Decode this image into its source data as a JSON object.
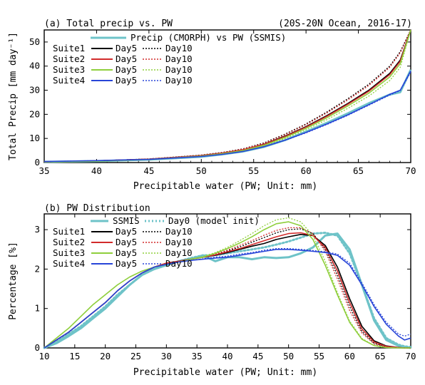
{
  "chart_data": [
    {
      "type": "line",
      "panel_label": "(a) Total precip vs. PW",
      "region_label": "(20S-20N Ocean, 2016-17)",
      "xlabel": "Precipitable water (PW; Unit: mm)",
      "ylabel": "Total Precip [mm day⁻¹]",
      "xlim": [
        35,
        70
      ],
      "ylim": [
        0,
        55
      ],
      "xticks": [
        35,
        40,
        45,
        50,
        55,
        60,
        65,
        70
      ],
      "yticks": [
        0,
        10,
        20,
        30,
        40,
        50
      ],
      "grid": false,
      "legend_position": "top-left",
      "reference": {
        "label": "Precip (CMORPH) vs PW (SSMIS)",
        "color": "#6ec3c8"
      },
      "suites": [
        {
          "name": "Suite1",
          "color": "#000000"
        },
        {
          "name": "Suite2",
          "color": "#d22b2b"
        },
        {
          "name": "Suite3",
          "color": "#8fcf3c"
        },
        {
          "name": "Suite4",
          "color": "#2845d8"
        }
      ],
      "day_labels": [
        "Day5",
        "Day10"
      ],
      "x": [
        35,
        40,
        45,
        50,
        52,
        54,
        56,
        58,
        60,
        62,
        64,
        66,
        68,
        69,
        70
      ],
      "observed": [
        0.3,
        0.6,
        1.2,
        2.4,
        3.4,
        4.6,
        6.5,
        9.3,
        12.8,
        16.5,
        20.4,
        24.6,
        28.2,
        29.2,
        38.5
      ],
      "series": [
        {
          "suite": "Suite1",
          "day": "Day5",
          "values": [
            0.3,
            0.7,
            1.4,
            2.9,
            3.9,
            5.3,
            7.6,
            11.0,
            14.9,
            19.5,
            24.5,
            30.0,
            37.0,
            42.5,
            55.0
          ]
        },
        {
          "suite": "Suite1",
          "day": "Day10",
          "values": [
            0.3,
            0.7,
            1.5,
            3.1,
            4.2,
            5.7,
            8.2,
            11.8,
            16.0,
            21.0,
            26.5,
            32.5,
            40.0,
            46.0,
            55.0
          ]
        },
        {
          "suite": "Suite2",
          "day": "Day5",
          "values": [
            0.3,
            0.7,
            1.4,
            2.9,
            3.9,
            5.3,
            7.5,
            10.8,
            14.7,
            19.2,
            24.2,
            29.6,
            36.5,
            42.0,
            55.0
          ]
        },
        {
          "suite": "Suite2",
          "day": "Day10",
          "values": [
            0.3,
            0.7,
            1.5,
            3.0,
            4.1,
            5.6,
            8.0,
            11.6,
            15.7,
            20.6,
            26.0,
            32.0,
            39.5,
            45.5,
            55.0
          ]
        },
        {
          "suite": "Suite3",
          "day": "Day5",
          "values": [
            0.3,
            0.6,
            1.3,
            2.7,
            3.7,
            5.0,
            7.2,
            10.4,
            14.2,
            18.6,
            23.5,
            28.8,
            35.5,
            41.0,
            55.0
          ]
        },
        {
          "suite": "Suite3",
          "day": "Day10",
          "values": [
            0.3,
            0.6,
            1.3,
            2.7,
            3.6,
            4.9,
            7.0,
            10.0,
            13.6,
            17.8,
            22.5,
            27.6,
            34.0,
            39.5,
            55.0
          ]
        },
        {
          "suite": "Suite4",
          "day": "Day5",
          "values": [
            0.4,
            0.8,
            1.3,
            2.5,
            3.4,
            4.6,
            6.6,
            9.3,
            12.5,
            16.0,
            19.8,
            24.0,
            28.3,
            30.0,
            38.0
          ]
        },
        {
          "suite": "Suite4",
          "day": "Day10",
          "values": [
            0.4,
            0.8,
            1.3,
            2.5,
            3.4,
            4.6,
            6.6,
            9.2,
            12.3,
            15.8,
            19.6,
            23.8,
            28.0,
            29.8,
            37.5
          ]
        }
      ]
    },
    {
      "type": "line",
      "panel_label": "(b) PW Distribution",
      "xlabel": "Precipitable water (PW; Unit: mm)",
      "ylabel": "Percentage [%]",
      "xlim": [
        10,
        70
      ],
      "ylim": [
        0,
        3.4
      ],
      "xticks": [
        10,
        15,
        20,
        25,
        30,
        35,
        40,
        45,
        50,
        55,
        60,
        65,
        70
      ],
      "yticks": [
        0,
        1,
        2,
        3
      ],
      "grid": false,
      "legend_position": "top-left",
      "reference": {
        "label": "SSMIS",
        "color": "#6ec3c8"
      },
      "reference_init": {
        "label": "Day0 (model init)",
        "color": "#6ec3c8"
      },
      "suites": [
        {
          "name": "Suite1",
          "color": "#000000"
        },
        {
          "name": "Suite2",
          "color": "#d22b2b"
        },
        {
          "name": "Suite3",
          "color": "#8fcf3c"
        },
        {
          "name": "Suite4",
          "color": "#2845d8"
        }
      ],
      "day_labels": [
        "Day5",
        "Day10"
      ],
      "x": [
        10,
        12,
        14,
        16,
        18,
        20,
        22,
        24,
        26,
        28,
        30,
        32,
        34,
        36,
        38,
        40,
        42,
        44,
        46,
        48,
        50,
        52,
        54,
        56,
        58,
        60,
        62,
        64,
        66,
        68,
        69,
        70
      ],
      "observed": [
        0.0,
        0.12,
        0.3,
        0.5,
        0.75,
        1.0,
        1.3,
        1.6,
        1.85,
        2.0,
        2.1,
        2.2,
        2.25,
        2.35,
        2.2,
        2.3,
        2.3,
        2.25,
        2.3,
        2.28,
        2.3,
        2.4,
        2.55,
        2.85,
        2.9,
        2.5,
        1.6,
        0.7,
        0.2,
        0.05,
        0.02,
        0.0
      ],
      "day0": [
        0.0,
        0.15,
        0.35,
        0.55,
        0.8,
        1.05,
        1.35,
        1.6,
        1.85,
        2.0,
        2.1,
        2.2,
        2.28,
        2.35,
        2.35,
        2.4,
        2.45,
        2.5,
        2.55,
        2.62,
        2.7,
        2.8,
        2.9,
        2.92,
        2.85,
        2.4,
        1.6,
        0.75,
        0.25,
        0.08,
        0.04,
        0.02
      ],
      "series": [
        {
          "suite": "Suite1",
          "day": "Day5",
          "values": [
            0.0,
            0.2,
            0.4,
            0.65,
            0.9,
            1.15,
            1.45,
            1.7,
            1.9,
            2.05,
            2.15,
            2.2,
            2.25,
            2.3,
            2.35,
            2.42,
            2.5,
            2.58,
            2.65,
            2.75,
            2.82,
            2.88,
            2.85,
            2.6,
            2.05,
            1.25,
            0.55,
            0.18,
            0.05,
            0.01,
            0.0,
            0.0
          ]
        },
        {
          "suite": "Suite1",
          "day": "Day10",
          "values": [
            0.0,
            0.2,
            0.4,
            0.65,
            0.9,
            1.15,
            1.45,
            1.7,
            1.9,
            2.05,
            2.15,
            2.2,
            2.25,
            2.3,
            2.38,
            2.46,
            2.56,
            2.68,
            2.8,
            2.92,
            3.0,
            3.02,
            2.9,
            2.5,
            1.85,
            1.05,
            0.42,
            0.12,
            0.03,
            0.01,
            0.0,
            0.0
          ]
        },
        {
          "suite": "Suite2",
          "day": "Day5",
          "values": [
            0.0,
            0.2,
            0.4,
            0.65,
            0.9,
            1.15,
            1.45,
            1.7,
            1.9,
            2.05,
            2.15,
            2.2,
            2.25,
            2.3,
            2.36,
            2.44,
            2.52,
            2.62,
            2.72,
            2.82,
            2.9,
            2.92,
            2.85,
            2.55,
            1.95,
            1.15,
            0.48,
            0.15,
            0.04,
            0.01,
            0.0,
            0.0
          ]
        },
        {
          "suite": "Suite2",
          "day": "Day10",
          "values": [
            0.0,
            0.2,
            0.4,
            0.65,
            0.9,
            1.15,
            1.45,
            1.7,
            1.9,
            2.05,
            2.15,
            2.2,
            2.25,
            2.3,
            2.38,
            2.48,
            2.6,
            2.72,
            2.86,
            2.98,
            3.05,
            3.05,
            2.9,
            2.45,
            1.75,
            0.95,
            0.38,
            0.1,
            0.02,
            0.0,
            0.0,
            0.0
          ]
        },
        {
          "suite": "Suite3",
          "day": "Day5",
          "values": [
            0.0,
            0.25,
            0.5,
            0.8,
            1.1,
            1.35,
            1.6,
            1.8,
            1.95,
            2.05,
            2.12,
            2.18,
            2.25,
            2.3,
            2.4,
            2.52,
            2.66,
            2.82,
            3.0,
            3.15,
            3.2,
            3.1,
            2.75,
            2.1,
            1.35,
            0.65,
            0.22,
            0.06,
            0.01,
            0.0,
            0.0,
            0.0
          ]
        },
        {
          "suite": "Suite3",
          "day": "Day10",
          "values": [
            0.0,
            0.25,
            0.5,
            0.8,
            1.1,
            1.35,
            1.6,
            1.8,
            1.95,
            2.05,
            2.12,
            2.18,
            2.25,
            2.32,
            2.42,
            2.55,
            2.72,
            2.9,
            3.1,
            3.25,
            3.3,
            3.2,
            2.85,
            2.2,
            1.4,
            0.68,
            0.24,
            0.06,
            0.01,
            0.0,
            0.0,
            0.0
          ]
        },
        {
          "suite": "Suite4",
          "day": "Day5",
          "values": [
            0.0,
            0.2,
            0.4,
            0.65,
            0.9,
            1.15,
            1.45,
            1.7,
            1.9,
            2.05,
            2.12,
            2.18,
            2.22,
            2.25,
            2.28,
            2.3,
            2.35,
            2.4,
            2.45,
            2.5,
            2.5,
            2.48,
            2.45,
            2.42,
            2.35,
            2.1,
            1.6,
            1.05,
            0.6,
            0.3,
            0.2,
            0.25
          ]
        },
        {
          "suite": "Suite4",
          "day": "Day10",
          "values": [
            0.0,
            0.2,
            0.4,
            0.65,
            0.9,
            1.15,
            1.45,
            1.7,
            1.9,
            2.05,
            2.12,
            2.18,
            2.22,
            2.26,
            2.3,
            2.33,
            2.38,
            2.42,
            2.48,
            2.52,
            2.52,
            2.5,
            2.47,
            2.44,
            2.38,
            2.15,
            1.65,
            1.1,
            0.65,
            0.35,
            0.3,
            0.35
          ]
        }
      ]
    }
  ]
}
